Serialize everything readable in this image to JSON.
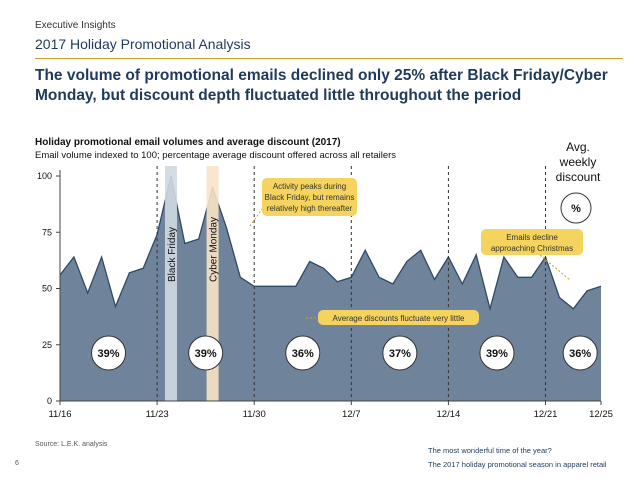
{
  "header": {
    "section": "Executive Insights",
    "subtitle": "2017 Holiday Promotional Analysis",
    "headline": "The volume of promotional emails declined only 25% after Black Friday/Cyber Monday, but discount depth fluctuated little throughout the period"
  },
  "chart_data": {
    "type": "area",
    "title": "Holiday promotional email volumes and average discount (2017)",
    "subtitle": "Email volume indexed to 100; percentage average discount offered across all retailers",
    "xlabel": "",
    "ylabel": "",
    "x_ticks": [
      "11/16",
      "11/23",
      "11/30",
      "12/7",
      "12/14",
      "12/21",
      "12/25"
    ],
    "ylim": [
      0,
      100
    ],
    "y_ticks": [
      0,
      25,
      50,
      75,
      100
    ],
    "x_days": [
      0,
      1,
      2,
      3,
      4,
      5,
      6,
      7,
      8,
      9,
      10,
      11,
      12,
      13,
      14,
      15,
      16,
      17,
      18,
      19,
      20,
      21,
      22,
      23,
      24,
      25,
      26,
      27,
      28,
      29,
      30,
      31,
      32,
      33,
      34,
      35,
      36,
      37,
      38,
      39
    ],
    "values": [
      56,
      64,
      48,
      64,
      42,
      57,
      59,
      74,
      100,
      70,
      72,
      95,
      77,
      55,
      51,
      51,
      51,
      51,
      62,
      59,
      53,
      55,
      67,
      55,
      52,
      62,
      67,
      54,
      64,
      52,
      65,
      41,
      64,
      55,
      55,
      64,
      46,
      41,
      49,
      51
    ],
    "last_x": 39,
    "weekly_dividers_x": [
      7,
      14,
      21,
      28,
      35
    ],
    "events": [
      {
        "label": "Black Friday",
        "x": 8,
        "color": "#cfd9e3"
      },
      {
        "label": "Cyber Monday",
        "x": 11,
        "color": "#f8e3c6"
      }
    ],
    "avg_discount": {
      "header_line1": "Avg.",
      "header_line2": "weekly",
      "header_line3": "discount",
      "symbol": "%",
      "weeks": [
        {
          "x": 3.5,
          "value": "39%"
        },
        {
          "x": 10.5,
          "value": "39%"
        },
        {
          "x": 17.5,
          "value": "36%"
        },
        {
          "x": 24.5,
          "value": "37%"
        },
        {
          "x": 31.5,
          "value": "39%"
        },
        {
          "x": 37.5,
          "value": "36%"
        }
      ]
    },
    "callouts": [
      {
        "text": "Activity peaks during Black Friday, but remains relatively high thereafter"
      },
      {
        "text": "Emails decline approaching Christmas"
      },
      {
        "text": "Average discounts fluctuate very little"
      }
    ],
    "colors": {
      "area": "#6f849a",
      "area_stroke": "#2f4a66",
      "callout": "#f4d35e",
      "divider": "#333333"
    }
  },
  "footer": {
    "source": "Source: L.E.K. analysis",
    "page": "6",
    "line1": "The most wonderful time of the year?",
    "line2": "The 2017 holiday promotional season in apparel retail"
  }
}
